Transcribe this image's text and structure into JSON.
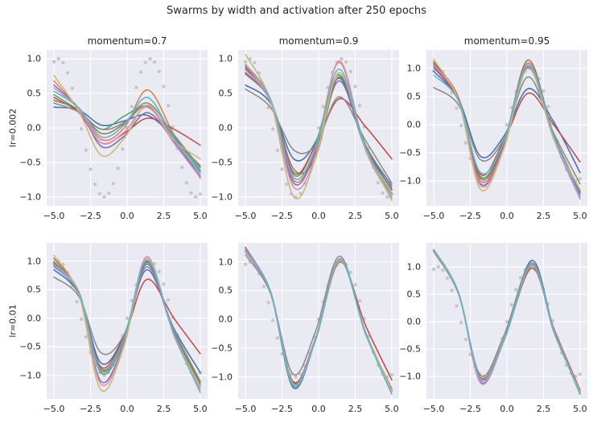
{
  "figure": {
    "background": "#ffffff",
    "axes_background": "#eaeaf2",
    "grid_color": "#ffffff",
    "text_color": "#262626",
    "target_dot_color": "#c6c6cc",
    "palette": {
      "blue": "#4c72b0",
      "orange": "#dd8452",
      "green": "#55a868",
      "red": "#c44e52",
      "purple": "#8172b3",
      "brown": "#937860",
      "pink": "#da8bc3",
      "gray": "#8c8c8c",
      "gold": "#ccb974",
      "cyan": "#64b5cd"
    }
  },
  "chart_data": {
    "type": "line",
    "title": "Swarms by width and activation after 250 epochs",
    "grid": true,
    "legend": false,
    "col_labels": [
      "momentum=0.7",
      "momentum=0.9",
      "momentum=0.95"
    ],
    "row_labels": [
      "lr=0.002",
      "lr=0.01"
    ],
    "xlim": [
      -5.5,
      5.5
    ],
    "x_ticks": [
      -5.0,
      -2.5,
      0.0,
      2.5,
      5.0
    ],
    "x_tick_labels": [
      "−5.0",
      "−2.5",
      "0.0",
      "2.5",
      "5.0"
    ],
    "y_ticks": [
      1.0,
      0.5,
      0.0,
      -0.5,
      -1.0
    ],
    "y_tick_labels": [
      "1.0",
      "0.5",
      "0.0",
      "−0.5",
      "−1.0"
    ],
    "target": {
      "label": "target",
      "function": "sin(x)",
      "x_range": [
        -5,
        5
      ],
      "n_points": 33,
      "style": "dotted"
    },
    "subplots": [
      {
        "row": "lr=0.002",
        "col": "momentum=0.7",
        "ylim": [
          -1.13,
          1.13
        ],
        "x_anchors": [
          -5,
          -3.3,
          -1.75,
          -0.2,
          1.4,
          3.2,
          5
        ],
        "lines": [
          {
            "color": "blue",
            "y": [
              0.3,
              0.26,
              0.04,
              0.1,
              0.18,
              -0.14,
              -0.62
            ]
          },
          {
            "color": "orange",
            "y": [
              0.68,
              0.28,
              -0.17,
              0.0,
              0.55,
              -0.1,
              -0.73
            ]
          },
          {
            "color": "green",
            "y": [
              0.48,
              0.25,
              -0.02,
              0.17,
              0.3,
              -0.12,
              -0.63
            ]
          },
          {
            "color": "red",
            "y": [
              0.44,
              0.22,
              -0.22,
              -0.08,
              0.14,
              -0.02,
              -0.25
            ]
          },
          {
            "color": "purple",
            "y": [
              0.62,
              0.28,
              -0.27,
              -0.12,
              0.22,
              -0.2,
              -0.7
            ]
          },
          {
            "color": "brown",
            "y": [
              0.4,
              0.26,
              -0.08,
              0.06,
              0.32,
              -0.15,
              -0.55
            ]
          },
          {
            "color": "pink",
            "y": [
              0.58,
              0.27,
              -0.22,
              -0.06,
              0.3,
              -0.22,
              -0.72
            ]
          },
          {
            "color": "gray",
            "y": [
              0.36,
              0.23,
              -0.02,
              0.08,
              0.36,
              -0.1,
              -0.58
            ]
          },
          {
            "color": "gold",
            "y": [
              0.76,
              0.24,
              -0.4,
              -0.15,
              0.33,
              -0.18,
              -0.45
            ]
          },
          {
            "color": "cyan",
            "y": [
              0.53,
              0.29,
              -0.13,
              0.04,
              0.44,
              -0.15,
              -0.66
            ]
          }
        ]
      },
      {
        "row": "lr=0.002",
        "col": "momentum=0.9",
        "ylim": [
          -1.13,
          1.13
        ],
        "x_anchors": [
          -5,
          -3.3,
          -1.7,
          -0.2,
          1.4,
          3.2,
          5
        ],
        "lines": [
          {
            "color": "blue",
            "y": [
              0.62,
              0.36,
              -0.45,
              -0.2,
              0.72,
              -0.25,
              -0.84
            ]
          },
          {
            "color": "orange",
            "y": [
              0.92,
              0.42,
              -0.76,
              -0.3,
              0.95,
              -0.3,
              -0.95
            ]
          },
          {
            "color": "green",
            "y": [
              0.85,
              0.4,
              -0.68,
              -0.22,
              0.77,
              -0.28,
              -0.9
            ]
          },
          {
            "color": "red",
            "y": [
              0.88,
              0.38,
              -0.65,
              -0.25,
              0.42,
              0.02,
              -0.45
            ]
          },
          {
            "color": "purple",
            "y": [
              0.8,
              0.38,
              -0.8,
              -0.35,
              0.68,
              -0.3,
              -0.88
            ]
          },
          {
            "color": "brown",
            "y": [
              0.78,
              0.4,
              -0.6,
              -0.42,
              0.74,
              -0.25,
              -0.9
            ]
          },
          {
            "color": "pink",
            "y": [
              0.84,
              0.38,
              -0.86,
              -0.4,
              0.97,
              -0.32,
              -1.02
            ]
          },
          {
            "color": "gray",
            "y": [
              0.56,
              0.3,
              -0.32,
              -0.25,
              0.45,
              -0.18,
              -0.8
            ]
          },
          {
            "color": "gold",
            "y": [
              1.06,
              0.4,
              -1.0,
              -0.44,
              0.8,
              -0.3,
              -1.05
            ]
          },
          {
            "color": "cyan",
            "y": [
              0.9,
              0.42,
              -0.72,
              -0.28,
              0.85,
              -0.28,
              -1.0
            ]
          }
        ]
      },
      {
        "row": "lr=0.002",
        "col": "momentum=0.95",
        "ylim": [
          -1.44,
          1.33
        ],
        "x_anchors": [
          -5,
          -3.3,
          -1.8,
          -0.2,
          1.45,
          3.2,
          5
        ],
        "lines": [
          {
            "color": "blue",
            "y": [
              0.95,
              0.45,
              -0.56,
              -0.2,
              0.64,
              0.05,
              -0.85
            ]
          },
          {
            "color": "orange",
            "y": [
              1.1,
              0.48,
              -1.0,
              -0.35,
              1.1,
              -0.2,
              -1.25
            ]
          },
          {
            "color": "green",
            "y": [
              1.04,
              0.45,
              -0.92,
              -0.3,
              1.05,
              -0.18,
              -1.2
            ]
          },
          {
            "color": "red",
            "y": [
              1.02,
              0.42,
              -0.88,
              -0.28,
              0.56,
              0.0,
              -0.66
            ]
          },
          {
            "color": "purple",
            "y": [
              1.08,
              0.45,
              -1.05,
              -0.38,
              1.02,
              -0.22,
              -1.22
            ]
          },
          {
            "color": "brown",
            "y": [
              1.12,
              0.46,
              -0.95,
              -0.32,
              1.15,
              -0.18,
              -1.18
            ]
          },
          {
            "color": "pink",
            "y": [
              1.06,
              0.44,
              -1.08,
              -0.4,
              1.08,
              -0.25,
              -1.32
            ]
          },
          {
            "color": "gray",
            "y": [
              0.66,
              0.35,
              -0.62,
              -0.25,
              0.85,
              -0.15,
              -1.05
            ]
          },
          {
            "color": "gold",
            "y": [
              1.16,
              0.42,
              -1.15,
              -0.42,
              1.0,
              -0.25,
              -1.15
            ]
          },
          {
            "color": "cyan",
            "y": [
              0.88,
              0.42,
              -0.85,
              -0.3,
              1.05,
              -0.2,
              -1.28
            ]
          }
        ]
      },
      {
        "row": "lr=0.01",
        "col": "momentum=0.7",
        "ylim": [
          -1.41,
          1.32
        ],
        "x_anchors": [
          -5,
          -3.3,
          -1.8,
          -0.2,
          1.35,
          3.2,
          5
        ],
        "lines": [
          {
            "color": "blue",
            "y": [
              0.85,
              0.42,
              -0.78,
              -0.3,
              0.85,
              -0.18,
              -0.95
            ]
          },
          {
            "color": "orange",
            "y": [
              1.0,
              0.45,
              -0.9,
              -0.35,
              1.02,
              -0.25,
              -1.15
            ]
          },
          {
            "color": "green",
            "y": [
              0.98,
              0.44,
              -0.95,
              -0.38,
              0.98,
              -0.25,
              -1.18
            ]
          },
          {
            "color": "red",
            "y": [
              0.95,
              0.42,
              -0.85,
              -0.32,
              0.68,
              0.0,
              -0.62
            ]
          },
          {
            "color": "purple",
            "y": [
              0.92,
              0.44,
              -1.1,
              -0.42,
              0.95,
              -0.28,
              -1.2
            ]
          },
          {
            "color": "brown",
            "y": [
              1.05,
              0.46,
              -0.88,
              -0.35,
              1.0,
              -0.25,
              -1.12
            ]
          },
          {
            "color": "pink",
            "y": [
              0.94,
              0.44,
              -1.15,
              -0.45,
              1.08,
              -0.3,
              -1.25
            ]
          },
          {
            "color": "gray",
            "y": [
              0.72,
              0.38,
              -0.6,
              -0.28,
              0.9,
              -0.2,
              -1.1
            ]
          },
          {
            "color": "gold",
            "y": [
              1.1,
              0.42,
              -1.25,
              -0.48,
              1.05,
              -0.28,
              -1.2
            ]
          },
          {
            "color": "cyan",
            "y": [
              0.9,
              0.44,
              -0.92,
              -0.35,
              1.02,
              -0.28,
              -1.3
            ]
          }
        ]
      },
      {
        "row": "lr=0.01",
        "col": "momentum=0.9",
        "ylim": [
          -1.38,
          1.33
        ],
        "x_anchors": [
          -5,
          -3.3,
          -1.75,
          -0.2,
          1.45,
          3.2,
          5
        ],
        "lines": [
          {
            "color": "blue",
            "y": [
              1.18,
              0.48,
              -1.18,
              -0.35,
              1.02,
              -0.22,
              -1.25
            ]
          },
          {
            "color": "orange",
            "y": [
              1.22,
              0.5,
              -1.1,
              -0.32,
              1.05,
              -0.22,
              -1.22
            ]
          },
          {
            "color": "green",
            "y": [
              1.2,
              0.48,
              -1.15,
              -0.33,
              1.03,
              -0.23,
              -1.24
            ]
          },
          {
            "color": "red",
            "y": [
              1.25,
              0.48,
              -1.08,
              -0.32,
              1.0,
              -0.1,
              -1.05
            ]
          },
          {
            "color": "purple",
            "y": [
              1.18,
              0.47,
              -1.12,
              -0.34,
              1.04,
              -0.23,
              -1.25
            ]
          },
          {
            "color": "brown",
            "y": [
              1.2,
              0.49,
              -1.1,
              -0.33,
              1.05,
              -0.22,
              -1.23
            ]
          },
          {
            "color": "pink",
            "y": [
              1.19,
              0.48,
              -1.14,
              -0.34,
              1.06,
              -0.24,
              -1.26
            ]
          },
          {
            "color": "gray",
            "y": [
              1.12,
              0.46,
              -0.95,
              -0.2,
              1.1,
              -0.25,
              -1.2
            ]
          },
          {
            "color": "gold",
            "y": [
              1.22,
              0.49,
              -1.12,
              -0.33,
              1.02,
              -0.23,
              -1.24
            ]
          },
          {
            "color": "cyan",
            "y": [
              1.21,
              0.49,
              -1.13,
              -0.33,
              1.04,
              -0.24,
              -1.3
            ]
          }
        ]
      },
      {
        "row": "lr=0.01",
        "col": "momentum=0.95",
        "ylim": [
          -1.41,
          1.44
        ],
        "x_anchors": [
          -5,
          -3.3,
          -1.8,
          -0.2,
          1.7,
          3.2,
          5
        ],
        "lines": [
          {
            "color": "blue",
            "y": [
              1.3,
              0.52,
              -1.04,
              -0.33,
              1.12,
              -0.13,
              -1.3
            ]
          },
          {
            "color": "orange",
            "y": [
              1.29,
              0.52,
              -1.05,
              -0.33,
              1.04,
              -0.14,
              -1.29
            ]
          },
          {
            "color": "green",
            "y": [
              1.3,
              0.52,
              -1.03,
              -0.34,
              1.02,
              -0.15,
              -1.31
            ]
          },
          {
            "color": "red",
            "y": [
              1.31,
              0.51,
              -1.02,
              -0.33,
              0.98,
              -0.12,
              -1.25
            ]
          },
          {
            "color": "purple",
            "y": [
              1.3,
              0.52,
              -1.1,
              -0.34,
              1.03,
              -0.15,
              -1.3
            ]
          },
          {
            "color": "brown",
            "y": [
              1.29,
              0.52,
              -1.04,
              -0.33,
              1.05,
              -0.14,
              -1.28
            ]
          },
          {
            "color": "pink",
            "y": [
              1.3,
              0.52,
              -1.12,
              -0.35,
              1.04,
              -0.16,
              -1.32
            ]
          },
          {
            "color": "gray",
            "y": [
              1.28,
              0.5,
              -0.98,
              -0.25,
              1.08,
              -0.18,
              -1.28
            ]
          },
          {
            "color": "gold",
            "y": [
              1.31,
              0.52,
              -1.05,
              -0.34,
              1.03,
              -0.15,
              -1.29
            ]
          },
          {
            "color": "cyan",
            "y": [
              1.32,
              0.53,
              -1.06,
              -0.34,
              1.04,
              -0.15,
              -1.33
            ]
          }
        ]
      }
    ]
  }
}
